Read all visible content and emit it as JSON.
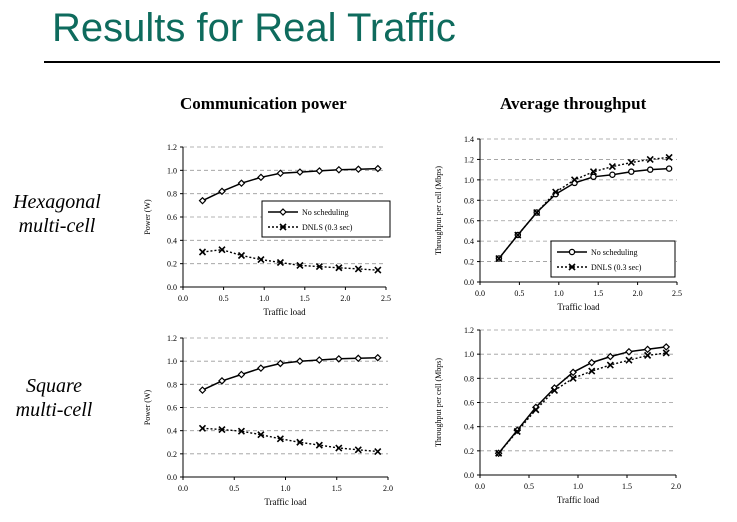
{
  "slide_title": "Results for Real Traffic",
  "columns": {
    "left": "Communication power",
    "right": "Average throughput"
  },
  "rows": {
    "hex": {
      "line1": "Hexagonal",
      "line2": "multi-cell"
    },
    "square": {
      "line1": "Square",
      "line2": "multi-cell"
    }
  },
  "chart_data": [
    {
      "type": "line",
      "xlabel": "Traffic load",
      "ylabel": "Power (W)",
      "xlim": [
        0,
        2.5
      ],
      "ylim": [
        0,
        1.2
      ],
      "xticks": [
        "0.0",
        "0.5",
        "1.0",
        "1.5",
        "2.0",
        "2.5"
      ],
      "yticks": [
        "0.0",
        "0.2",
        "0.4",
        "0.6",
        "0.8",
        "1.0",
        "1.2"
      ],
      "grid": true,
      "legend": "center-right",
      "series": [
        {
          "name": "No scheduling",
          "marker": "diamond",
          "style": "solid",
          "x": [
            0.24,
            0.48,
            0.72,
            0.96,
            1.2,
            1.44,
            1.68,
            1.92,
            2.16,
            2.4
          ],
          "y": [
            0.74,
            0.82,
            0.89,
            0.94,
            0.975,
            0.985,
            0.995,
            1.005,
            1.01,
            1.015
          ]
        },
        {
          "name": "DNLS (0.3 sec)",
          "marker": "x",
          "style": "dotted",
          "x": [
            0.24,
            0.48,
            0.72,
            0.96,
            1.2,
            1.44,
            1.68,
            1.92,
            2.16,
            2.4
          ],
          "y": [
            0.3,
            0.32,
            0.27,
            0.235,
            0.21,
            0.185,
            0.175,
            0.165,
            0.155,
            0.145
          ]
        }
      ]
    },
    {
      "type": "line",
      "xlabel": "Traffic load",
      "ylabel": "Throughput per cell (Mbps)",
      "xlim": [
        0,
        2.5
      ],
      "ylim": [
        0,
        1.4
      ],
      "xticks": [
        "0.0",
        "0.5",
        "1.0",
        "1.5",
        "2.0",
        "2.5"
      ],
      "yticks": [
        "0.0",
        "0.2",
        "0.4",
        "0.6",
        "0.8",
        "1.0",
        "1.2",
        "1.4"
      ],
      "grid": true,
      "legend": "bottom-right",
      "series": [
        {
          "name": "No scheduling",
          "marker": "circle",
          "style": "solid",
          "x": [
            0.24,
            0.48,
            0.72,
            0.96,
            1.2,
            1.44,
            1.68,
            1.92,
            2.16,
            2.4
          ],
          "y": [
            0.23,
            0.46,
            0.68,
            0.86,
            0.97,
            1.03,
            1.05,
            1.08,
            1.1,
            1.11
          ]
        },
        {
          "name": "DNLS (0.3 sec)",
          "marker": "x",
          "style": "dotted",
          "x": [
            0.24,
            0.48,
            0.72,
            0.96,
            1.2,
            1.44,
            1.68,
            1.92,
            2.16,
            2.4
          ],
          "y": [
            0.23,
            0.46,
            0.68,
            0.88,
            1.0,
            1.08,
            1.13,
            1.17,
            1.2,
            1.22
          ]
        }
      ]
    },
    {
      "type": "line",
      "xlabel": "Traffic load",
      "ylabel": "Power (W)",
      "xlim": [
        0,
        2.0
      ],
      "ylim": [
        0,
        1.2
      ],
      "xticks": [
        "0.0",
        "0.5",
        "1.0",
        "1.5",
        "2.0"
      ],
      "yticks": [
        "0.0",
        "0.2",
        "0.4",
        "0.6",
        "0.8",
        "1.0",
        "1.2"
      ],
      "grid": true,
      "legend": "none",
      "series": [
        {
          "name": "No scheduling",
          "marker": "diamond",
          "style": "solid",
          "x": [
            0.19,
            0.38,
            0.57,
            0.76,
            0.95,
            1.14,
            1.33,
            1.52,
            1.71,
            1.9
          ],
          "y": [
            0.75,
            0.83,
            0.885,
            0.94,
            0.98,
            1.0,
            1.01,
            1.02,
            1.025,
            1.03
          ]
        },
        {
          "name": "DNLS (0.3 sec)",
          "marker": "x",
          "style": "dotted",
          "x": [
            0.19,
            0.38,
            0.57,
            0.76,
            0.95,
            1.14,
            1.33,
            1.52,
            1.71,
            1.9
          ],
          "y": [
            0.42,
            0.41,
            0.395,
            0.365,
            0.33,
            0.3,
            0.275,
            0.25,
            0.235,
            0.22
          ]
        }
      ]
    },
    {
      "type": "line",
      "xlabel": "Traffic load",
      "ylabel": "Throughput per cell (Mbps)",
      "xlim": [
        0,
        2.0
      ],
      "ylim": [
        0,
        1.2
      ],
      "xticks": [
        "0.0",
        "0.5",
        "1.0",
        "1.5",
        "2.0"
      ],
      "yticks": [
        "0.0",
        "0.2",
        "0.4",
        "0.6",
        "0.8",
        "1.0",
        "1.2"
      ],
      "grid": true,
      "legend": "none",
      "series": [
        {
          "name": "No scheduling",
          "marker": "diamond",
          "style": "solid",
          "x": [
            0.19,
            0.38,
            0.57,
            0.76,
            0.95,
            1.14,
            1.33,
            1.52,
            1.71,
            1.9
          ],
          "y": [
            0.18,
            0.37,
            0.56,
            0.72,
            0.85,
            0.93,
            0.98,
            1.02,
            1.04,
            1.06
          ]
        },
        {
          "name": "DNLS (0.3 sec)",
          "marker": "x",
          "style": "dotted",
          "x": [
            0.19,
            0.38,
            0.57,
            0.76,
            0.95,
            1.14,
            1.33,
            1.52,
            1.71,
            1.9
          ],
          "y": [
            0.18,
            0.36,
            0.54,
            0.7,
            0.8,
            0.86,
            0.91,
            0.95,
            0.99,
            1.01
          ]
        }
      ]
    }
  ]
}
